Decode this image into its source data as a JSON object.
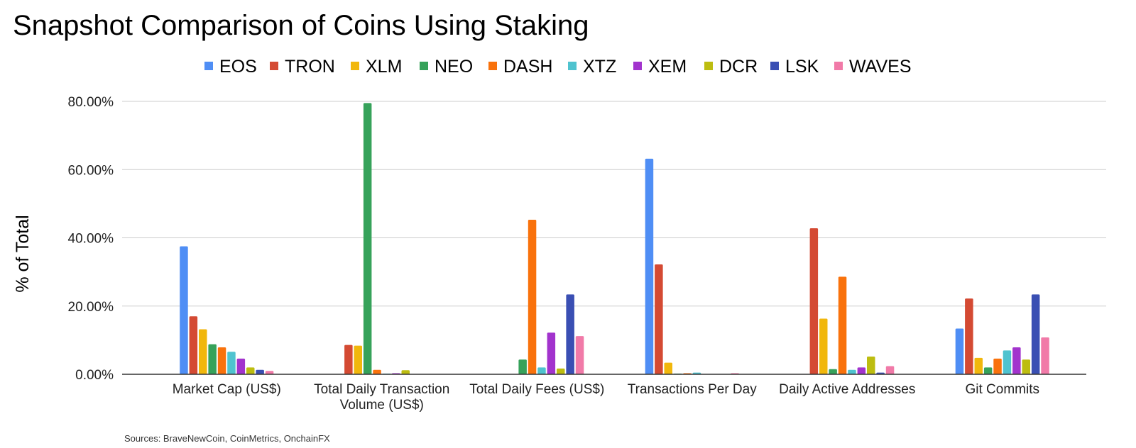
{
  "title": "Snapshot Comparison of Coins Using Staking",
  "source": "Sources: BraveNewCoin, CoinMetrics, OnchainFX",
  "chart_data": {
    "type": "bar",
    "title": "Snapshot Comparison of Coins Using Staking",
    "xlabel": "",
    "ylabel": "% of Total",
    "ylim": [
      0,
      80
    ],
    "yticks": [
      0,
      20,
      40,
      60,
      80
    ],
    "ytick_labels": [
      "0.00%",
      "20.00%",
      "40.00%",
      "60.00%",
      "80.00%"
    ],
    "grid": true,
    "legend_position": "top",
    "categories": [
      "Market Cap (US$)",
      "Total Daily Transaction\nVolume (US$)",
      "Total Daily Fees (US$)",
      "Transactions Per Day",
      "Daily Active Addresses",
      "Git Commits"
    ],
    "series": [
      {
        "name": "EOS",
        "color": "#4f8ef5",
        "values": [
          37.5,
          0,
          0,
          63.2,
          0,
          13.4
        ]
      },
      {
        "name": "TRON",
        "color": "#d44a33",
        "values": [
          17,
          8.6,
          0,
          32.2,
          42.8,
          22.2
        ]
      },
      {
        "name": "XLM",
        "color": "#f1b70c",
        "values": [
          13.2,
          8.4,
          0,
          3.4,
          16.3,
          4.8
        ]
      },
      {
        "name": "NEO",
        "color": "#36a25a",
        "values": [
          8.8,
          79.5,
          4.3,
          0.2,
          1.5,
          2.0
        ]
      },
      {
        "name": "DASH",
        "color": "#f9720c",
        "values": [
          7.9,
          1.3,
          45.3,
          0.3,
          28.6,
          4.6
        ]
      },
      {
        "name": "XTZ",
        "color": "#4fc3cf",
        "values": [
          6.6,
          0.2,
          2.0,
          0.5,
          1.3,
          7.0
        ]
      },
      {
        "name": "XEM",
        "color": "#a233cd",
        "values": [
          4.6,
          0.3,
          12.2,
          0.1,
          2.0,
          7.9
        ]
      },
      {
        "name": "DCR",
        "color": "#bdbd10",
        "values": [
          2.0,
          1.2,
          1.7,
          0.1,
          5.2,
          4.3
        ]
      },
      {
        "name": "LSK",
        "color": "#3a4fb3",
        "values": [
          1.3,
          0.1,
          23.4,
          0.1,
          0.5,
          23.4
        ]
      },
      {
        "name": "WAVES",
        "color": "#f17aa8",
        "values": [
          1.0,
          0.1,
          11.2,
          0.3,
          2.4,
          10.8
        ]
      }
    ]
  }
}
